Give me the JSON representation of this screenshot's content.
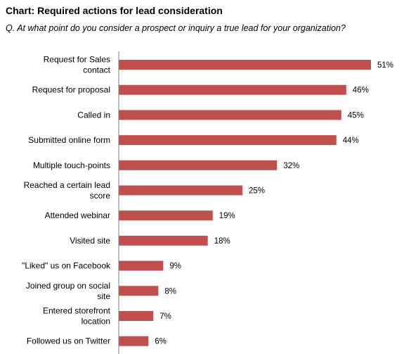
{
  "title": "Chart: Required actions for lead consideration",
  "subtitle": "Q. At what point do you consider a prospect or inquiry a true lead for your organization?",
  "colors": {
    "bar": "#c0504d",
    "axis": "#808080"
  },
  "chart_data": {
    "type": "bar",
    "orientation": "horizontal",
    "title": "Chart: Required actions for lead consideration",
    "subtitle": "Q. At what point do you consider a prospect or inquiry a true lead for your organization?",
    "xlabel": "",
    "ylabel": "",
    "xlim": [
      0,
      51
    ],
    "grid": false,
    "legend": "none",
    "value_suffix": "%",
    "categories": [
      "Request for Sales contact",
      "Request for proposal",
      "Called in",
      "Submitted online form",
      "Multiple touch-points",
      "Reached a certain lead score",
      "Attended webinar",
      "Visited site",
      "\"Liked\" us on Facebook",
      "Joined group on social site",
      "Entered storefront location",
      "Followed us on Twitter"
    ],
    "category_lines": [
      [
        "Request for Sales",
        "contact"
      ],
      [
        "Request for proposal"
      ],
      [
        "Called in"
      ],
      [
        "Submitted online form"
      ],
      [
        "Multiple touch-points"
      ],
      [
        "Reached a certain lead",
        "score"
      ],
      [
        "Attended webinar"
      ],
      [
        "Visited site"
      ],
      [
        "\"Liked\" us on Facebook"
      ],
      [
        "Joined group on social",
        "site"
      ],
      [
        "Entered storefront",
        "location"
      ],
      [
        "Followed us on Twitter"
      ]
    ],
    "values": [
      51,
      46,
      45,
      44,
      32,
      25,
      19,
      18,
      9,
      8,
      7,
      6
    ],
    "value_labels": [
      "51%",
      "46%",
      "45%",
      "44%",
      "32%",
      "25%",
      "19%",
      "18%",
      "9%",
      "8%",
      "7%",
      "6%"
    ]
  }
}
